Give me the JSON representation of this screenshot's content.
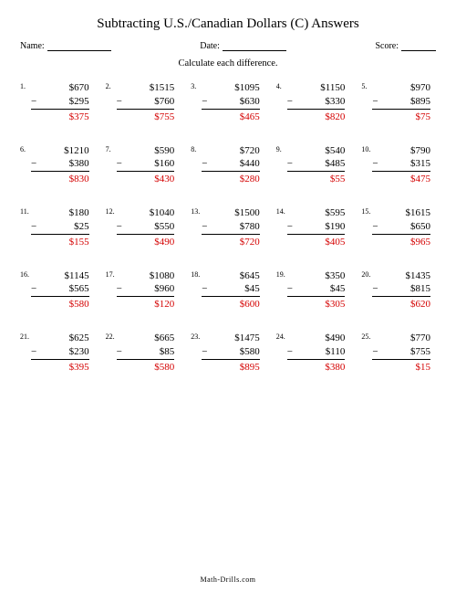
{
  "title": "Subtracting U.S./Canadian Dollars (C) Answers",
  "header": {
    "name_label": "Name:",
    "date_label": "Date:",
    "score_label": "Score:",
    "name_blank_width": 70,
    "date_blank_width": 70,
    "score_blank_width": 38
  },
  "instruction": "Calculate each difference.",
  "footer": "Math-Drills.com",
  "answer_color": "#d40000",
  "columns": 5,
  "font_family": "Times New Roman",
  "problems": [
    {
      "n": "1.",
      "minuend": "$670",
      "subtrahend": "$295",
      "answer": "$375"
    },
    {
      "n": "2.",
      "minuend": "$1515",
      "subtrahend": "$760",
      "answer": "$755"
    },
    {
      "n": "3.",
      "minuend": "$1095",
      "subtrahend": "$630",
      "answer": "$465"
    },
    {
      "n": "4.",
      "minuend": "$1150",
      "subtrahend": "$330",
      "answer": "$820"
    },
    {
      "n": "5.",
      "minuend": "$970",
      "subtrahend": "$895",
      "answer": "$75"
    },
    {
      "n": "6.",
      "minuend": "$1210",
      "subtrahend": "$380",
      "answer": "$830"
    },
    {
      "n": "7.",
      "minuend": "$590",
      "subtrahend": "$160",
      "answer": "$430"
    },
    {
      "n": "8.",
      "minuend": "$720",
      "subtrahend": "$440",
      "answer": "$280"
    },
    {
      "n": "9.",
      "minuend": "$540",
      "subtrahend": "$485",
      "answer": "$55"
    },
    {
      "n": "10.",
      "minuend": "$790",
      "subtrahend": "$315",
      "answer": "$475"
    },
    {
      "n": "11.",
      "minuend": "$180",
      "subtrahend": "$25",
      "answer": "$155"
    },
    {
      "n": "12.",
      "minuend": "$1040",
      "subtrahend": "$550",
      "answer": "$490"
    },
    {
      "n": "13.",
      "minuend": "$1500",
      "subtrahend": "$780",
      "answer": "$720"
    },
    {
      "n": "14.",
      "minuend": "$595",
      "subtrahend": "$190",
      "answer": "$405"
    },
    {
      "n": "15.",
      "minuend": "$1615",
      "subtrahend": "$650",
      "answer": "$965"
    },
    {
      "n": "16.",
      "minuend": "$1145",
      "subtrahend": "$565",
      "answer": "$580"
    },
    {
      "n": "17.",
      "minuend": "$1080",
      "subtrahend": "$960",
      "answer": "$120"
    },
    {
      "n": "18.",
      "minuend": "$645",
      "subtrahend": "$45",
      "answer": "$600"
    },
    {
      "n": "19.",
      "minuend": "$350",
      "subtrahend": "$45",
      "answer": "$305"
    },
    {
      "n": "20.",
      "minuend": "$1435",
      "subtrahend": "$815",
      "answer": "$620"
    },
    {
      "n": "21.",
      "minuend": "$625",
      "subtrahend": "$230",
      "answer": "$395"
    },
    {
      "n": "22.",
      "minuend": "$665",
      "subtrahend": "$85",
      "answer": "$580"
    },
    {
      "n": "23.",
      "minuend": "$1475",
      "subtrahend": "$580",
      "answer": "$895"
    },
    {
      "n": "24.",
      "minuend": "$490",
      "subtrahend": "$110",
      "answer": "$380"
    },
    {
      "n": "25.",
      "minuend": "$770",
      "subtrahend": "$755",
      "answer": "$15"
    }
  ]
}
